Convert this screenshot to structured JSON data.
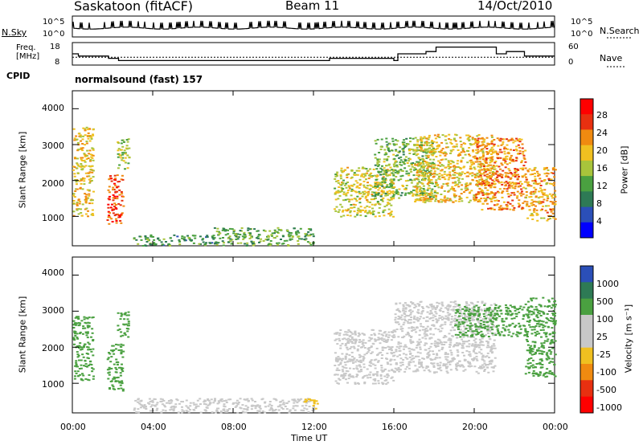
{
  "header": {
    "station": "Saskatoon (fitACF)",
    "beam": "Beam 11",
    "date": "14/Oct/2010"
  },
  "labels": {
    "nsky": "N.Sky",
    "nsearch": "N.Search",
    "freq_line1": "Freq.",
    "freq_line2": "[MHz]",
    "nave": "Nave",
    "cpid": "CPID",
    "cpid_value": "normalsound (fast) 157",
    "xlabel": "Time UT",
    "ylabel": "Slant Range [km]",
    "power_label": "Power [dB]",
    "velocity_label": "Velocity [m s⁻¹]"
  },
  "ticks": {
    "noise_top": "10^5",
    "noise_bottom": "10^0",
    "freq_left": [
      "18",
      "8"
    ],
    "nave_right": [
      "60",
      "0"
    ],
    "time": [
      "00:00",
      "04:00",
      "08:00",
      "12:00",
      "16:00",
      "20:00",
      "00:00"
    ],
    "range_km": [
      "1000",
      "2000",
      "3000",
      "4000"
    ]
  },
  "chart_data": [
    {
      "type": "line",
      "title": "",
      "name": "noise",
      "xlabel": "",
      "ylabel": "N.Sky",
      "x_hours": [
        0,
        2,
        4,
        6,
        8,
        10,
        12,
        14,
        16,
        18,
        20,
        22,
        24
      ],
      "series": [
        {
          "name": "N.Sky",
          "values": [
            "10^4",
            "10^4",
            "10^4",
            "10^4",
            "10^4",
            "10^4",
            "10^4",
            "10^4",
            "10^4",
            "10^4",
            "10^4",
            "10^4",
            "10^4"
          ]
        }
      ],
      "ylim": [
        "10^0",
        "10^5"
      ],
      "scale": "log"
    },
    {
      "type": "line",
      "title": "",
      "name": "frequency-nave",
      "steps_hours": [
        0,
        0.3,
        1.8,
        2.3,
        12.6,
        12.8,
        16,
        16.2,
        17.6,
        18.1,
        21.1,
        21.6,
        22.5,
        24
      ],
      "freq_mhz": [
        13,
        12,
        11,
        10,
        10,
        11,
        10,
        13,
        14,
        16,
        13,
        14,
        12,
        12
      ],
      "nave_ylim": [
        0,
        60
      ],
      "freq_ylim": [
        8,
        18
      ]
    },
    {
      "type": "heatmap",
      "title": "",
      "name": "power",
      "xlabel": "Time UT",
      "ylabel": "Slant Range [km]",
      "xlim_hours": [
        0,
        24
      ],
      "ylim_km": [
        180,
        4500
      ],
      "colorbar": {
        "label": "Power [dB]",
        "ticks": [
          4,
          8,
          12,
          16,
          20,
          24,
          28
        ],
        "colors": [
          "#0000ff",
          "#2b4fb8",
          "#2e7a55",
          "#4aa040",
          "#a8c43b",
          "#f0c020",
          "#f08a10",
          "#e83010",
          "#ff0000"
        ]
      },
      "regions": [
        {
          "t0": 0.0,
          "t1": 1.0,
          "r0": 1000,
          "r1": 3500,
          "level": 18
        },
        {
          "t0": 1.7,
          "t1": 2.5,
          "r0": 800,
          "r1": 2200,
          "level": 26
        },
        {
          "t0": 2.2,
          "t1": 2.8,
          "r0": 2300,
          "r1": 3200,
          "level": 14
        },
        {
          "t0": 3.0,
          "t1": 7.0,
          "r0": 200,
          "r1": 500,
          "level": 8
        },
        {
          "t0": 7.0,
          "t1": 12.0,
          "r0": 200,
          "r1": 700,
          "level": 10
        },
        {
          "t0": 13.0,
          "t1": 16.0,
          "r0": 1000,
          "r1": 2400,
          "level": 16
        },
        {
          "t0": 15.0,
          "t1": 18.0,
          "r0": 1500,
          "r1": 3200,
          "level": 12
        },
        {
          "t0": 17.0,
          "t1": 21.0,
          "r0": 1400,
          "r1": 3300,
          "level": 18
        },
        {
          "t0": 20.0,
          "t1": 22.5,
          "r0": 1200,
          "r1": 3200,
          "level": 22
        },
        {
          "t0": 22.5,
          "t1": 24.0,
          "r0": 900,
          "r1": 2400,
          "level": 20
        }
      ]
    },
    {
      "type": "heatmap",
      "title": "",
      "name": "velocity",
      "xlabel": "Time UT",
      "ylabel": "Slant Range [km]",
      "xlim_hours": [
        0,
        24
      ],
      "ylim_km": [
        180,
        4500
      ],
      "colorbar": {
        "label": "Velocity [m s⁻¹]",
        "ticks": [
          1000,
          500,
          100,
          25,
          -25,
          -100,
          -500,
          -1000
        ],
        "colors": [
          "#2b4fb8",
          "#2e7a55",
          "#4aa040",
          "#c8c8c8",
          "#c8c8c8",
          "#f0c020",
          "#f08a10",
          "#e83010",
          "#ff0000"
        ]
      },
      "regions": [
        {
          "t0": 0.0,
          "t1": 1.0,
          "r0": 1100,
          "r1": 2900,
          "level": 50
        },
        {
          "t0": 1.7,
          "t1": 2.5,
          "r0": 800,
          "r1": 2100,
          "level": 80
        },
        {
          "t0": 2.2,
          "t1": 2.8,
          "r0": 2300,
          "r1": 3000,
          "level": 60
        },
        {
          "t0": 3.0,
          "t1": 12.0,
          "r0": 200,
          "r1": 600,
          "level": 0
        },
        {
          "t0": 11.5,
          "t1": 12.2,
          "r0": 300,
          "r1": 600,
          "level": -80
        },
        {
          "t0": 13.0,
          "t1": 16.0,
          "r0": 1000,
          "r1": 2500,
          "level": 0
        },
        {
          "t0": 16.0,
          "t1": 21.0,
          "r0": 1300,
          "r1": 3300,
          "level": 0
        },
        {
          "t0": 19.0,
          "t1": 22.5,
          "r0": 2300,
          "r1": 3200,
          "level": 70
        },
        {
          "t0": 22.5,
          "t1": 24.0,
          "r0": 1200,
          "r1": 3400,
          "level": 40
        }
      ]
    }
  ]
}
